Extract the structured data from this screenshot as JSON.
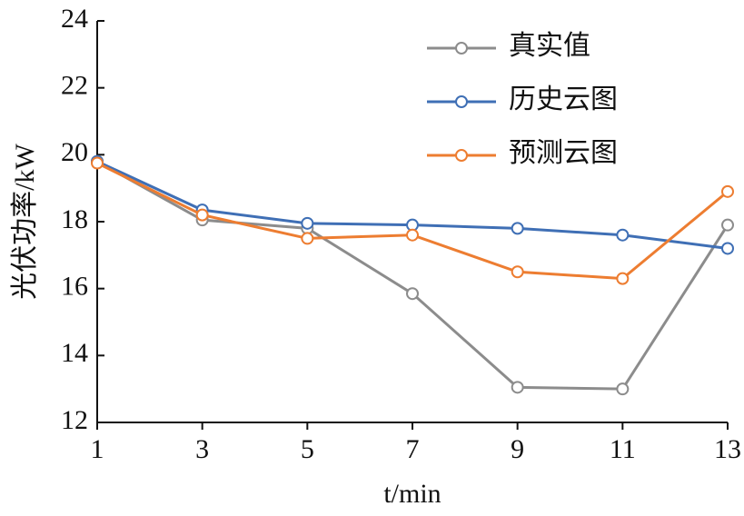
{
  "chart_data": {
    "type": "line",
    "xlabel": "t/min",
    "ylabel": "光伏功率/kW",
    "x": [
      1,
      3,
      5,
      7,
      9,
      11,
      13
    ],
    "xlim": [
      1,
      13
    ],
    "xticks": [
      1,
      3,
      5,
      7,
      9,
      11,
      13
    ],
    "ylim": [
      12,
      24
    ],
    "yticks": [
      12,
      14,
      16,
      18,
      20,
      22,
      24
    ],
    "legend": "upper right",
    "series": [
      {
        "name": "真实值",
        "color": "#8c8c8c",
        "values": [
          19.8,
          18.05,
          17.8,
          15.85,
          13.05,
          13.0,
          17.9
        ]
      },
      {
        "name": "历史云图",
        "color": "#3f6fb5",
        "values": [
          19.8,
          18.35,
          17.95,
          17.9,
          17.8,
          17.6,
          17.2
        ]
      },
      {
        "name": "预测云图",
        "color": "#ed7d31",
        "values": [
          19.75,
          18.2,
          17.5,
          17.6,
          16.5,
          16.3,
          18.9
        ]
      }
    ]
  }
}
